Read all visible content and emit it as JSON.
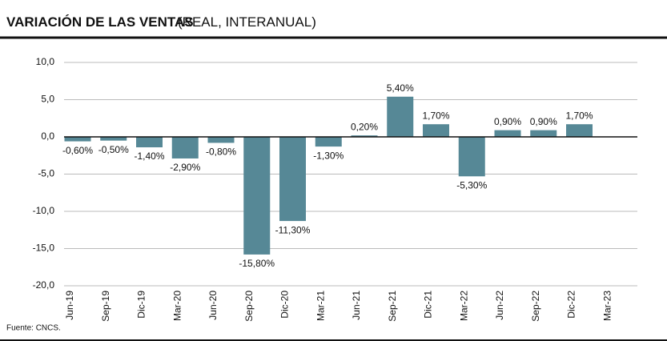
{
  "chart_data": {
    "type": "bar",
    "title": "VARIACIÓN DE LAS VENTAS",
    "subtitle": "(REAL, INTERANUAL)",
    "source": "Fuente: CNCS.",
    "categories": [
      "Jun-19",
      "Sep-19",
      "Dic-19",
      "Mar-20",
      "Jun-20",
      "Sep-20",
      "Dic-20",
      "Mar-21",
      "Jun-21",
      "Sep-21",
      "Dic-21",
      "Mar-22",
      "Jun-22",
      "Sep-22",
      "Dic-22",
      "Mar-23"
    ],
    "values": [
      -0.6,
      -0.5,
      -1.4,
      -2.9,
      -0.8,
      -15.8,
      -11.3,
      -1.3,
      0.2,
      5.4,
      1.7,
      -5.3,
      0.9,
      0.9,
      1.7,
      null
    ],
    "value_labels": [
      "-0,60%",
      "-0,50%",
      "-1,40%",
      "-2,90%",
      "-0,80%",
      "-15,80%",
      "-11,30%",
      "-1,30%",
      "0,20%",
      "5,40%",
      "1,70%",
      "-5,30%",
      "0,90%",
      "0,90%",
      "1,70%",
      null
    ],
    "color": "#568896",
    "ylim": [
      -20,
      10
    ],
    "yticks": [
      {
        "value": 10,
        "label": "10,0"
      },
      {
        "value": 5,
        "label": "5,0"
      },
      {
        "value": 0,
        "label": "0,0"
      },
      {
        "value": -5,
        "label": "-5,0"
      },
      {
        "value": -10,
        "label": "-10,0"
      },
      {
        "value": -15,
        "label": "-15,0"
      },
      {
        "value": -20,
        "label": "-20,0"
      }
    ],
    "grid": true
  }
}
